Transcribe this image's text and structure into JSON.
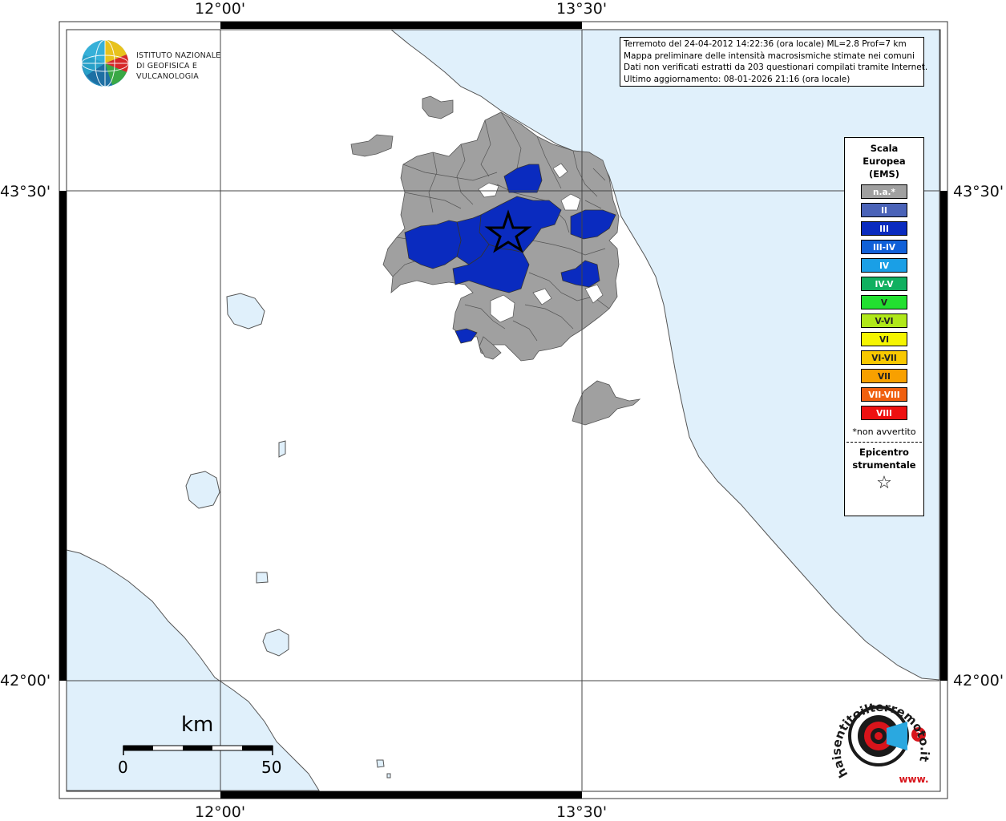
{
  "coords": {
    "top_left_lon": "12°00'",
    "top_right_lon": "13°30'",
    "bottom_left_lon": "12°00'",
    "bottom_right_lon": "13°30'",
    "left_upper_lat": "43°30'",
    "left_lower_lat": "42°00'",
    "right_upper_lat": "43°30'",
    "right_lower_lat": "42°00'"
  },
  "ingv": {
    "line1": "ISTITUTO NAZIONALE",
    "line2": "DI GEOFISICA E VULCANOLOGIA"
  },
  "info": {
    "line1": "Terremoto del 24-04-2012 14:22:36 (ora locale) ML=2.8 Prof=7 km",
    "line2": "Mappa preliminare delle intensità macrosismiche stimate nei comuni",
    "line3": "Dati non verificati estratti da 203 questionari compilati tramite Internet.",
    "line4": "Ultimo aggiornamento: 08-01-2026 21:16 (ora locale)"
  },
  "legend": {
    "title1": "Scala",
    "title2": "Europea",
    "title3": "(EMS)",
    "items": [
      {
        "label": "n.a.*",
        "color": "#a0a0a0"
      },
      {
        "label": "II",
        "color": "#4a63b8"
      },
      {
        "label": "III",
        "color": "#0a2bbf"
      },
      {
        "label": "III-IV",
        "color": "#1060d8"
      },
      {
        "label": "IV",
        "color": "#1a9fe6"
      },
      {
        "label": "IV-V",
        "color": "#10b060"
      },
      {
        "label": "V",
        "color": "#22e030"
      },
      {
        "label": "V-VI",
        "color": "#b0e81a"
      },
      {
        "label": "VI",
        "color": "#f5f500"
      },
      {
        "label": "VI-VII",
        "color": "#f8c800"
      },
      {
        "label": "VII",
        "color": "#f8a000"
      },
      {
        "label": "VII-VIII",
        "color": "#f06010"
      },
      {
        "label": "VIII",
        "color": "#ee1010"
      }
    ],
    "note": "*non avvertito",
    "epicenter1": "Epicentro",
    "epicenter2": "strumentale",
    "epicenter_symbol": "☆"
  },
  "scale": {
    "unit": "km",
    "start": "0",
    "end": "50"
  },
  "haisentito": {
    "text": "haisentitoilterremoto.it",
    "prefix": "www.",
    "colors": {
      "ring": "#1a1a1a",
      "red": "#d8141b",
      "blue": "#2aa8e0"
    }
  },
  "colors": {
    "sea": "#e0f0fb",
    "land": "#ffffff",
    "na": "#a0a0a0",
    "intensity_III": "#0a2bbf"
  }
}
